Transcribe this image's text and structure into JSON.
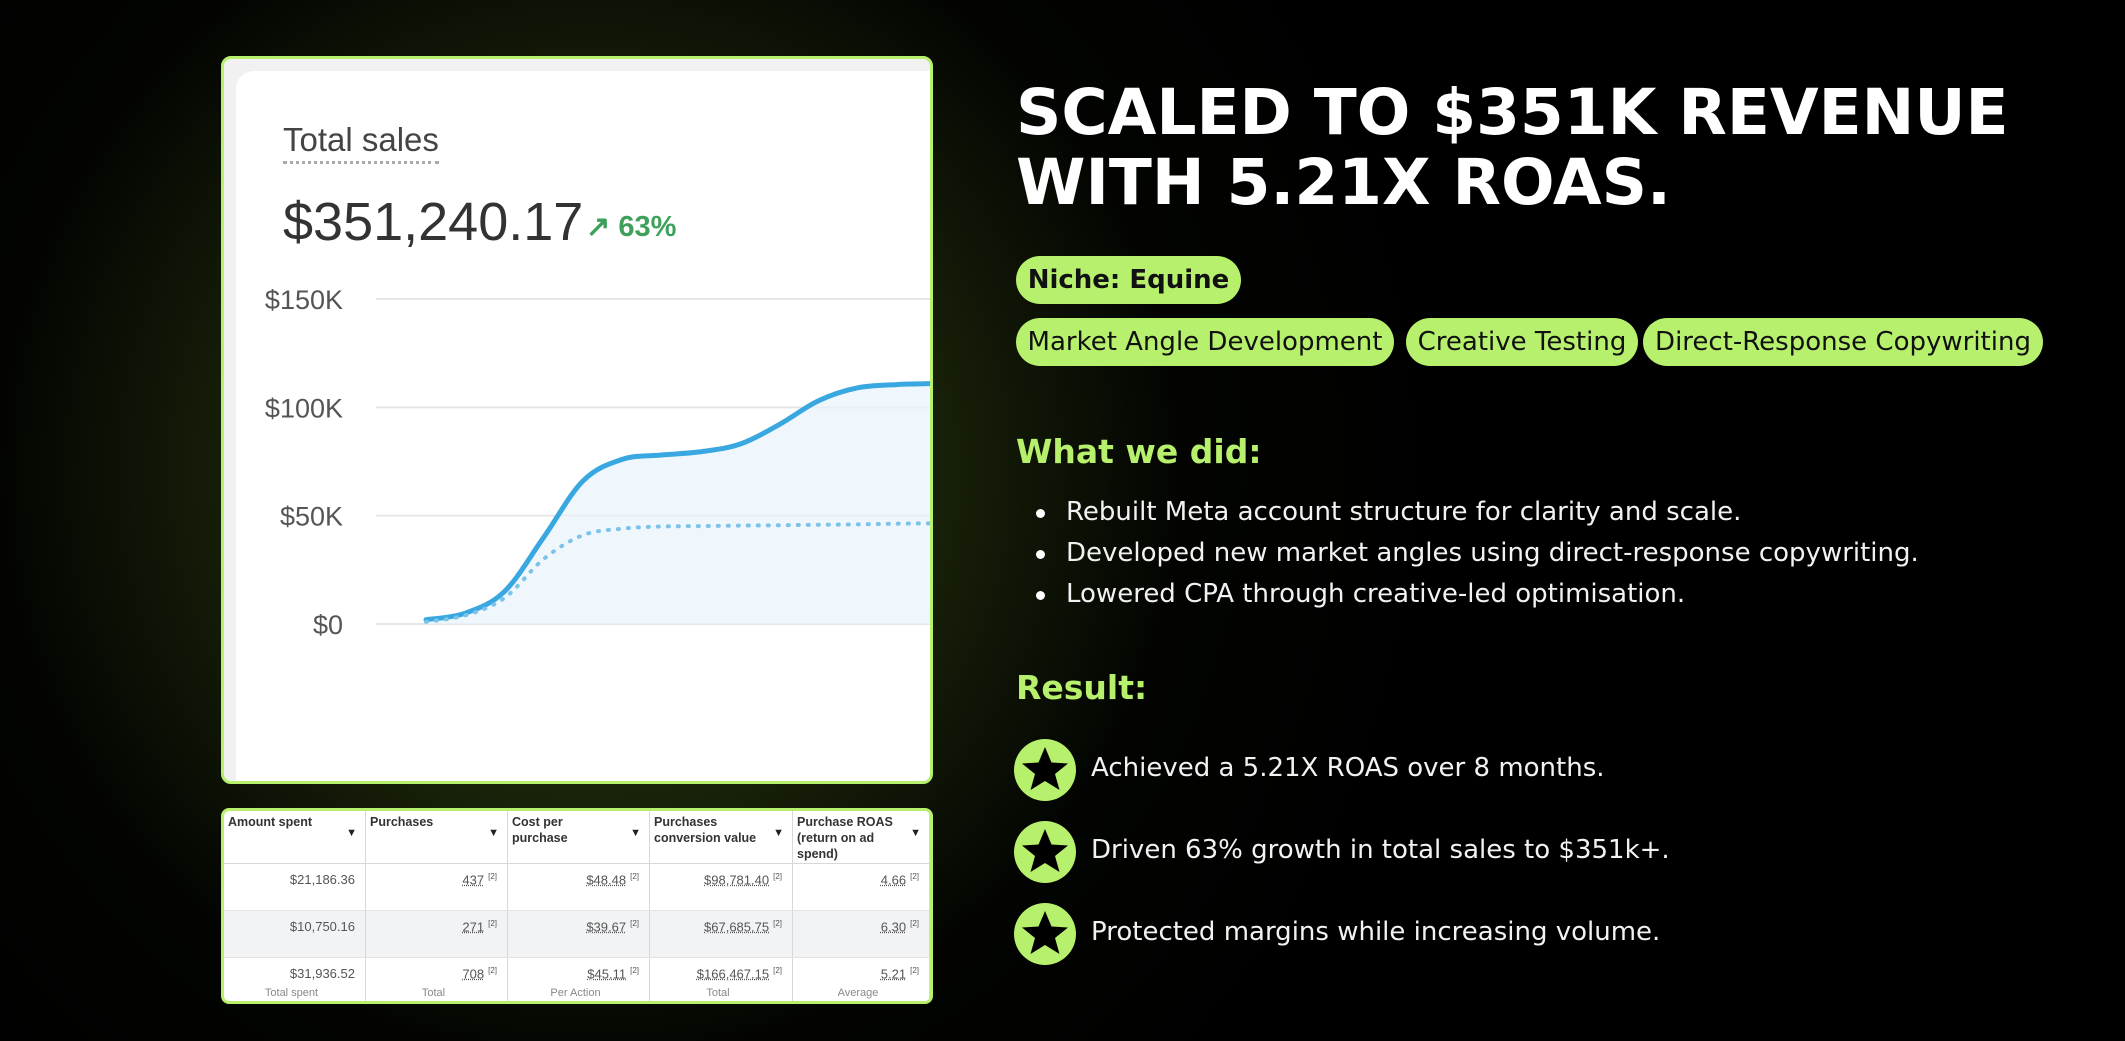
{
  "headline": {
    "line1": "SCALED TO $351K REVENUE",
    "line2": "WITH 5.21X ROAS."
  },
  "niche": "Niche: Equine",
  "tags": [
    "Market Angle Development",
    "Creative Testing",
    "Direct-Response Copywriting"
  ],
  "what_we_did": {
    "title": "What we did:",
    "items": [
      "Rebuilt Meta account structure for clarity and scale.",
      "Developed new market angles using direct-response copywriting.",
      "Lowered CPA through creative-led optimisation."
    ]
  },
  "result": {
    "title": "Result:",
    "items": [
      "Achieved a 5.21X ROAS over 8 months.",
      "Driven 63% growth in total sales to $351k+.",
      "Protected margins while increasing volume."
    ]
  },
  "colors": {
    "accent": "#b7f06c",
    "background": "#000000",
    "line": "#3aa8e0",
    "growth": "#3fa05b"
  },
  "sales_widget": {
    "title": "Total sales",
    "total": "$351,240.17",
    "growth": "↗ 63%"
  },
  "chart_data": {
    "type": "line",
    "title": "Total sales",
    "ylabel": "",
    "xlabel": "",
    "ylim": [
      0,
      150000
    ],
    "y_ticks": [
      "$150K",
      "$100K",
      "$50K",
      "$0"
    ],
    "x": [
      0,
      1,
      2,
      3,
      4,
      5,
      6,
      7,
      8,
      9,
      10,
      11,
      12,
      13
    ],
    "series": [
      {
        "values": [
          2000,
          5000,
          15000,
          40000,
          66000,
          76000,
          78000,
          79500,
          83000,
          92000,
          103000,
          109000,
          110500,
          111000
        ],
        "style": "solid"
      },
      {
        "values": [
          1000,
          4000,
          12000,
          30000,
          41000,
          44000,
          45000,
          45200,
          45400,
          45600,
          45800,
          46000,
          46300,
          46500
        ],
        "style": "dotted"
      }
    ]
  },
  "ads_table": {
    "headers": [
      "Amount spent",
      "Purchases",
      "Cost per purchase",
      "Purchases conversion value",
      "Purchase ROAS (return on ad spend)"
    ],
    "rows": [
      [
        "$21,186.36",
        "437",
        "$48.48",
        "$98,781.40",
        "4.66"
      ],
      [
        "$10,750.16",
        "271",
        "$39.67",
        "$67,685.75",
        "6.30"
      ]
    ],
    "totals": [
      "$31,936.52",
      "708",
      "$45.11",
      "$166,467.15",
      "5.21"
    ],
    "total_labels": [
      "Total spent",
      "Total",
      "Per Action",
      "Total",
      "Average"
    ],
    "marker": "[2]"
  }
}
